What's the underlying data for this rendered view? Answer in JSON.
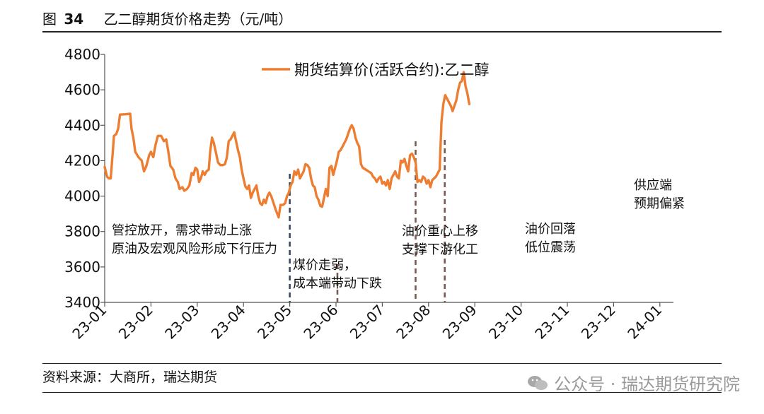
{
  "figure": {
    "label": "图",
    "number": "34",
    "title": "乙二醇期货价格走势（元/吨）"
  },
  "source": "资料来源：大商所，瑞达期货",
  "watermark": "公众号 · 瑞达期货研究院",
  "chart_data": {
    "type": "line",
    "title": "乙二醇期货价格走势（元/吨）",
    "xlabel": "",
    "ylabel": "",
    "ylim": [
      3400,
      4800
    ],
    "yticks": [
      3400,
      3600,
      3800,
      4000,
      4200,
      4400,
      4600,
      4800
    ],
    "xticks": [
      "23-01",
      "23-02",
      "23-03",
      "23-04",
      "23-05",
      "23-06",
      "23-07",
      "23-08",
      "23-09",
      "23-10",
      "23-11",
      "23-12",
      "24-01"
    ],
    "grid": false,
    "legend_position": "top-center",
    "series": [
      {
        "name": "期货结算价(活跃合约):乙二醇",
        "color": "#ED7D31",
        "points": [
          [
            0.0,
            4165
          ],
          [
            0.05,
            4110
          ],
          [
            0.09,
            4100
          ],
          [
            0.13,
            4100
          ],
          [
            0.16,
            4200
          ],
          [
            0.2,
            4340
          ],
          [
            0.25,
            4350
          ],
          [
            0.29,
            4380
          ],
          [
            0.33,
            4460
          ],
          [
            0.45,
            4462
          ],
          [
            0.55,
            4465
          ],
          [
            0.58,
            4380
          ],
          [
            0.62,
            4330
          ],
          [
            0.66,
            4250
          ],
          [
            0.73,
            4220
          ],
          [
            0.8,
            4200
          ],
          [
            0.85,
            4140
          ],
          [
            0.9,
            4170
          ],
          [
            0.96,
            4230
          ],
          [
            1.0,
            4250
          ],
          [
            1.05,
            4220
          ],
          [
            1.1,
            4290
          ],
          [
            1.15,
            4340
          ],
          [
            1.22,
            4340
          ],
          [
            1.28,
            4310
          ],
          [
            1.33,
            4320
          ],
          [
            1.37,
            4260
          ],
          [
            1.42,
            4170
          ],
          [
            1.48,
            4150
          ],
          [
            1.53,
            4100
          ],
          [
            1.58,
            4080
          ],
          [
            1.62,
            4040
          ],
          [
            1.68,
            4050
          ],
          [
            1.72,
            4030
          ],
          [
            1.78,
            4040
          ],
          [
            1.83,
            4060
          ],
          [
            1.88,
            4130
          ],
          [
            1.92,
            4120
          ],
          [
            1.96,
            4160
          ],
          [
            2.0,
            4150
          ],
          [
            2.04,
            4080
          ],
          [
            2.08,
            4100
          ],
          [
            2.12,
            4140
          ],
          [
            2.16,
            4120
          ],
          [
            2.2,
            4140
          ],
          [
            2.25,
            4150
          ],
          [
            2.28,
            4250
          ],
          [
            2.32,
            4330
          ],
          [
            2.36,
            4300
          ],
          [
            2.4,
            4250
          ],
          [
            2.45,
            4190
          ],
          [
            2.5,
            4175
          ],
          [
            2.55,
            4175
          ],
          [
            2.6,
            4180
          ],
          [
            2.64,
            4220
          ],
          [
            2.68,
            4310
          ],
          [
            2.72,
            4320
          ],
          [
            2.76,
            4340
          ],
          [
            2.8,
            4360
          ],
          [
            2.84,
            4310
          ],
          [
            2.88,
            4260
          ],
          [
            2.92,
            4220
          ],
          [
            2.96,
            4150
          ],
          [
            3.0,
            4100
          ],
          [
            3.04,
            4055
          ],
          [
            3.08,
            4040
          ],
          [
            3.12,
            4060
          ],
          [
            3.16,
            3990
          ],
          [
            3.2,
            4020
          ],
          [
            3.24,
            4040
          ],
          [
            3.28,
            4060
          ],
          [
            3.32,
            4000
          ],
          [
            3.36,
            3960
          ],
          [
            3.4,
            3950
          ],
          [
            3.44,
            3980
          ],
          [
            3.48,
            3960
          ],
          [
            3.52,
            4000
          ],
          [
            3.56,
            4020
          ],
          [
            3.6,
            4000
          ],
          [
            3.65,
            3960
          ],
          [
            3.7,
            3920
          ],
          [
            3.76,
            3880
          ],
          [
            3.8,
            3950
          ],
          [
            3.85,
            3950
          ],
          [
            3.9,
            3960
          ],
          [
            3.94,
            4000
          ],
          [
            3.98,
            4020
          ],
          [
            4.02,
            4060
          ],
          [
            4.06,
            4080
          ],
          [
            4.1,
            4140
          ],
          [
            4.14,
            4120
          ],
          [
            4.18,
            4150
          ],
          [
            4.22,
            4100
          ],
          [
            4.26,
            4120
          ],
          [
            4.3,
            4140
          ],
          [
            4.34,
            4180
          ],
          [
            4.38,
            4175
          ],
          [
            4.42,
            4160
          ],
          [
            4.46,
            4100
          ],
          [
            4.5,
            4060
          ],
          [
            4.54,
            4050
          ],
          [
            4.58,
            4000
          ],
          [
            4.62,
            3980
          ],
          [
            4.66,
            3945
          ],
          [
            4.7,
            3940
          ],
          [
            4.74,
            3990
          ],
          [
            4.78,
            4040
          ],
          [
            4.82,
            4000
          ],
          [
            4.86,
            4160
          ],
          [
            4.9,
            4170
          ],
          [
            4.94,
            4120
          ],
          [
            4.98,
            4160
          ],
          [
            5.02,
            4200
          ],
          [
            5.06,
            4250
          ],
          [
            5.1,
            4260
          ],
          [
            5.14,
            4280
          ],
          [
            5.18,
            4300
          ],
          [
            5.22,
            4320
          ],
          [
            5.26,
            4350
          ],
          [
            5.3,
            4380
          ],
          [
            5.34,
            4400
          ],
          [
            5.38,
            4380
          ],
          [
            5.42,
            4330
          ],
          [
            5.46,
            4300
          ],
          [
            5.5,
            4280
          ],
          [
            5.54,
            4180
          ],
          [
            5.58,
            4160
          ],
          [
            5.64,
            4150
          ],
          [
            5.7,
            4140
          ],
          [
            5.76,
            4130
          ],
          [
            5.8,
            4110
          ],
          [
            5.84,
            4100
          ],
          [
            5.88,
            4080
          ],
          [
            5.92,
            4100
          ],
          [
            5.96,
            4110
          ],
          [
            6.0,
            4070
          ],
          [
            6.04,
            4080
          ],
          [
            6.08,
            4060
          ],
          [
            6.12,
            4090
          ],
          [
            6.16,
            4040
          ],
          [
            6.2,
            4100
          ],
          [
            6.24,
            4120
          ],
          [
            6.28,
            4140
          ],
          [
            6.32,
            4110
          ],
          [
            6.36,
            4100
          ],
          [
            6.4,
            4200
          ],
          [
            6.44,
            4190
          ],
          [
            6.48,
            4210
          ],
          [
            6.52,
            4170
          ],
          [
            6.56,
            4140
          ],
          [
            6.6,
            4230
          ],
          [
            6.64,
            4240
          ],
          [
            6.68,
            4220
          ],
          [
            6.72,
            4190
          ],
          [
            6.76,
            4080
          ],
          [
            6.8,
            4090
          ],
          [
            6.84,
            4080
          ],
          [
            6.88,
            4110
          ],
          [
            6.92,
            4100
          ],
          [
            6.96,
            4070
          ],
          [
            7.0,
            4090
          ],
          [
            7.04,
            4050
          ],
          [
            7.08,
            4090
          ],
          [
            7.12,
            4100
          ],
          [
            7.16,
            4110
          ],
          [
            7.2,
            4130
          ],
          [
            7.24,
            4150
          ],
          [
            7.28,
            4420
          ],
          [
            7.32,
            4520
          ],
          [
            7.36,
            4570
          ],
          [
            7.4,
            4550
          ],
          [
            7.44,
            4530
          ],
          [
            7.48,
            4510
          ],
          [
            7.52,
            4480
          ],
          [
            7.56,
            4510
          ],
          [
            7.6,
            4540
          ],
          [
            7.64,
            4600
          ],
          [
            7.68,
            4640
          ],
          [
            7.72,
            4650
          ],
          [
            7.76,
            4700
          ],
          [
            7.8,
            4620
          ],
          [
            7.84,
            4580
          ],
          [
            7.88,
            4520
          ]
        ]
      }
    ],
    "annotations": [
      {
        "text": [
          "管控放开，需求带动上涨",
          "原油及宏观风险形成下行压力"
        ]
      },
      {
        "text": [
          "煤价走弱，",
          "成本端带动下跌"
        ]
      },
      {
        "text": [
          "油价重心上移",
          "支撑下游化工"
        ]
      },
      {
        "text": [
          "油价回落",
          "低位震荡"
        ]
      },
      {
        "text": [
          "供应端",
          "预期偏紧"
        ]
      }
    ],
    "vlines": [
      {
        "x_month": 4.0,
        "color": "#3b4a63"
      },
      {
        "x_month": 5.03,
        "color": "#7a5a52"
      },
      {
        "x_month": 6.72,
        "color": "#7a5a52"
      },
      {
        "x_month": 7.35,
        "color": "#7a5a52"
      }
    ]
  }
}
